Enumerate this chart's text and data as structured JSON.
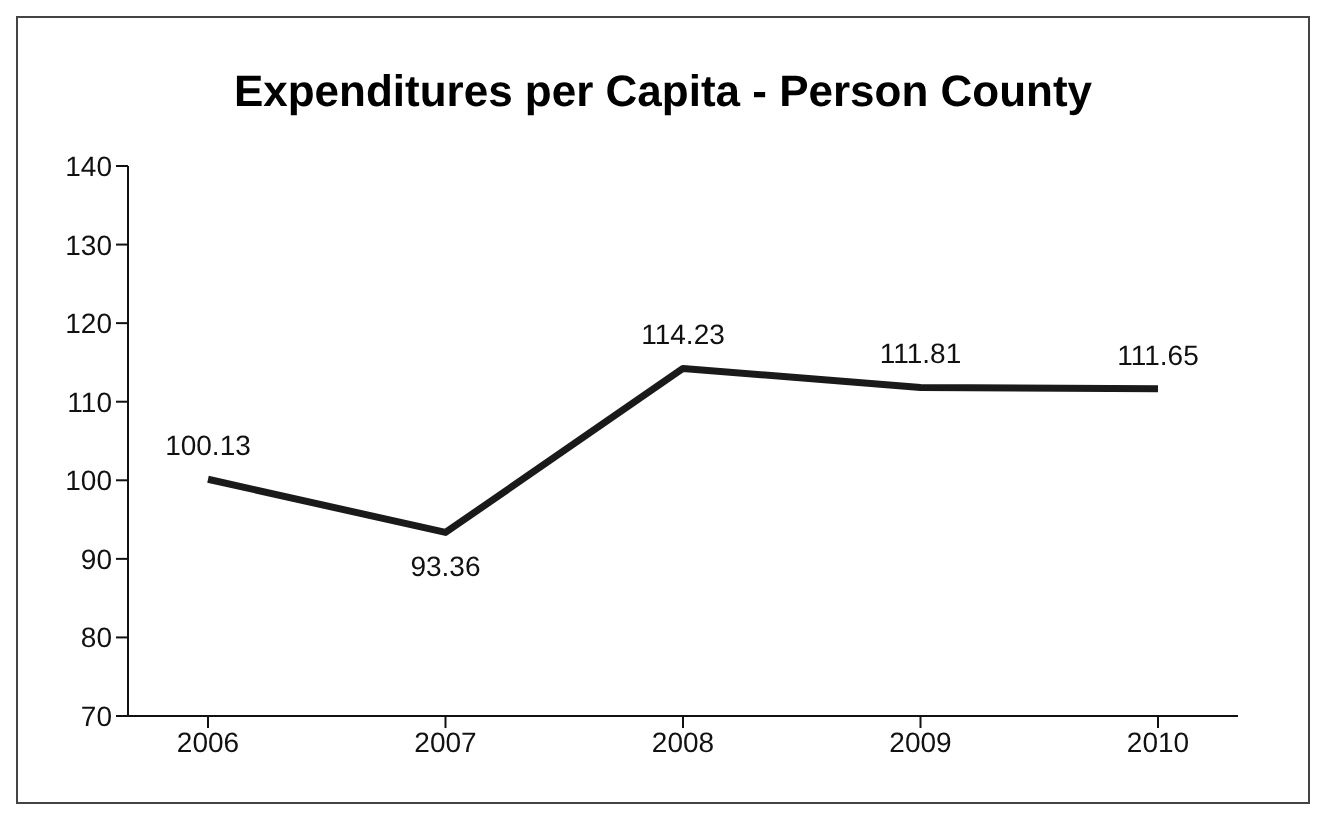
{
  "chart_data": {
    "type": "line",
    "title": "Expenditures per Capita - Person County",
    "categories": [
      "2006",
      "2007",
      "2008",
      "2009",
      "2010"
    ],
    "series": [
      {
        "color": "#1a1a1a",
        "values": [
          100.13,
          93.36,
          114.23,
          111.81,
          111.65
        ]
      }
    ],
    "ylim": [
      70,
      140
    ],
    "yticks": [
      70,
      80,
      90,
      100,
      110,
      120,
      130,
      140
    ],
    "data_labels": true,
    "grid": false,
    "legend": false,
    "marker": "none",
    "line_style": "solid"
  }
}
